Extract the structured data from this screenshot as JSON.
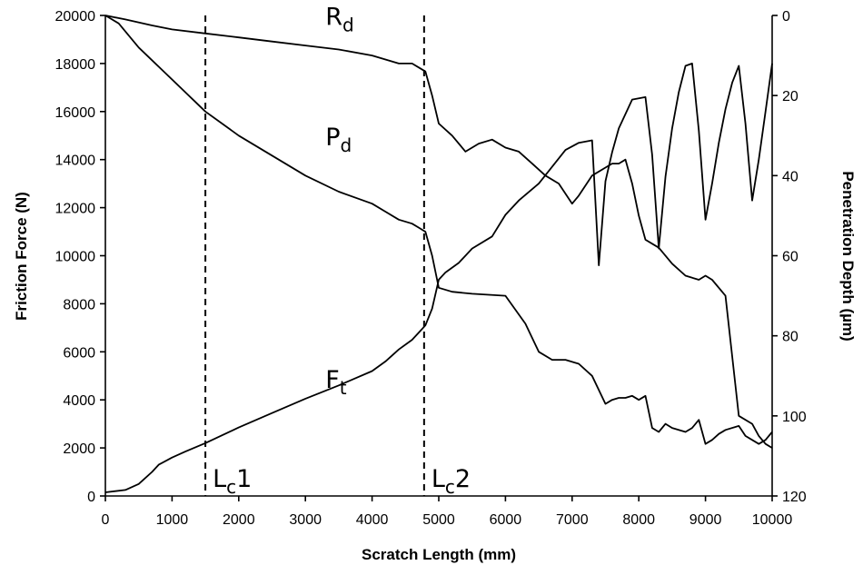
{
  "chart_data": {
    "type": "line",
    "xlabel": "Scratch Length (mm)",
    "ylabel": "Friction Force (N)",
    "y2label": "Penetration Depth (µm)",
    "xlim": [
      0,
      10000
    ],
    "ylim": [
      0,
      20000
    ],
    "y2lim": [
      0,
      120
    ],
    "y2_inverted": true,
    "grid": false,
    "x_ticks": [
      "0",
      "1000",
      "2000",
      "3000",
      "4000",
      "5000",
      "6000",
      "7000",
      "8000",
      "9000",
      "10000"
    ],
    "y_ticks": [
      "0",
      "2000",
      "4000",
      "6000",
      "8000",
      "10000",
      "12000",
      "14000",
      "16000",
      "18000",
      "20000"
    ],
    "y2_ticks": [
      "0",
      "20",
      "40",
      "60",
      "80",
      "100",
      "120"
    ],
    "series": [
      {
        "name": "Ft",
        "name_main": "F",
        "name_sub": "t",
        "axis": "left",
        "label_at": [
          3300,
          4500
        ],
        "x": [
          0,
          300,
          500,
          700,
          800,
          1000,
          1200,
          1500,
          2000,
          2500,
          3000,
          3500,
          4000,
          4200,
          4400,
          4600,
          4700,
          4800,
          4900,
          5000,
          5100,
          5300,
          5500,
          5800,
          6000,
          6200,
          6500,
          6700,
          6900,
          7100,
          7300,
          7400,
          7500,
          7600,
          7700,
          7900,
          8100,
          8200,
          8300,
          8400,
          8500,
          8600,
          8700,
          8800,
          8900,
          9000,
          9100,
          9200,
          9300,
          9400,
          9500,
          9600,
          9700,
          9800,
          9900,
          10000
        ],
        "values": [
          150,
          250,
          500,
          1000,
          1300,
          1600,
          1850,
          2200,
          2850,
          3450,
          4050,
          4600,
          5200,
          5600,
          6100,
          6500,
          6800,
          7100,
          7800,
          9000,
          9300,
          9700,
          10300,
          10800,
          11700,
          12300,
          13000,
          13700,
          14400,
          14700,
          14800,
          9600,
          13100,
          14300,
          15300,
          16500,
          16600,
          14200,
          10300,
          13300,
          15300,
          16800,
          17900,
          18000,
          15200,
          11500,
          13000,
          14700,
          16100,
          17200,
          17900,
          15500,
          12300,
          14000,
          16000,
          18000
        ]
      },
      {
        "name": "Rd",
        "name_main": "R",
        "name_sub": "d",
        "axis": "right",
        "label_at": [
          3300,
          19600
        ],
        "x": [
          0,
          300,
          700,
          1000,
          1500,
          2000,
          2500,
          3000,
          3500,
          4000,
          4200,
          4400,
          4600,
          4700,
          4800,
          4900,
          5000,
          5200,
          5400,
          5600,
          5800,
          6000,
          6200,
          6400,
          6600,
          6800,
          7000,
          7100,
          7300,
          7500,
          7600,
          7700,
          7800,
          7900,
          8000,
          8100,
          8200,
          8300,
          8500,
          8700,
          8900,
          9000,
          9100,
          9300,
          9500,
          9700,
          9800,
          9900,
          10000
        ],
        "values": [
          0,
          1,
          2.5,
          3.5,
          4.5,
          5.5,
          6.5,
          7.5,
          8.5,
          10,
          11,
          12,
          12,
          13,
          14,
          20,
          27,
          30,
          34,
          32,
          31,
          33,
          34,
          37,
          40,
          42,
          47,
          45,
          40,
          38,
          37,
          37,
          36,
          42,
          50,
          56,
          57,
          58,
          62,
          65,
          66,
          65,
          66,
          70,
          100,
          102,
          105,
          107,
          108
        ]
      },
      {
        "name": "Pd",
        "name_main": "P",
        "name_sub": "d",
        "axis": "right",
        "label_at": [
          3300,
          14600
        ],
        "x": [
          0,
          200,
          500,
          1000,
          1500,
          2000,
          2500,
          3000,
          3500,
          4000,
          4200,
          4400,
          4600,
          4700,
          4800,
          4900,
          5000,
          5200,
          5500,
          6000,
          6300,
          6500,
          6700,
          6900,
          7100,
          7300,
          7500,
          7600,
          7700,
          7800,
          7900,
          8000,
          8100,
          8200,
          8300,
          8400,
          8500,
          8700,
          8800,
          8900,
          9000,
          9100,
          9200,
          9300,
          9500,
          9600,
          9700,
          9800,
          9900,
          10000
        ],
        "values": [
          0,
          2,
          8,
          16,
          24,
          30,
          35,
          40,
          44,
          47,
          49,
          51,
          52,
          53,
          54,
          60,
          68,
          69,
          69.5,
          70,
          77,
          84,
          86,
          86,
          87,
          90,
          97,
          96,
          95.5,
          95.5,
          95,
          96,
          95,
          103,
          104,
          102,
          103,
          104,
          103,
          101,
          107,
          106,
          104.5,
          103.5,
          102.5,
          105,
          106,
          107,
          106,
          104
        ]
      }
    ],
    "markers": [
      {
        "label": "Lc1",
        "label_main": "L",
        "label_sub": "c",
        "label_suffix": "1",
        "x": 1500
      },
      {
        "label": "Lc2",
        "label_main": "L",
        "label_sub": "c",
        "label_suffix": "2",
        "x": 4780
      }
    ]
  }
}
